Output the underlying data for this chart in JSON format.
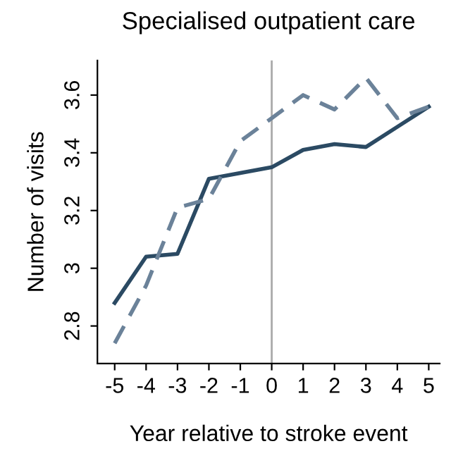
{
  "chart_data": {
    "type": "line",
    "title": "Specialised outpatient care",
    "xlabel": "Year relative to stroke event",
    "ylabel": "Number of visits",
    "x": [
      -5,
      -4,
      -3,
      -2,
      -1,
      0,
      1,
      2,
      3,
      4,
      5
    ],
    "series": [
      {
        "color": "#2b4a63",
        "line_style": "solid",
        "values": [
          2.88,
          3.04,
          3.05,
          3.31,
          3.33,
          3.35,
          3.41,
          3.43,
          3.42,
          3.49,
          3.56
        ]
      },
      {
        "color": "#6b8299",
        "line_style": "dashed",
        "values": [
          2.74,
          2.94,
          3.21,
          3.24,
          3.44,
          3.52,
          3.6,
          3.55,
          3.66,
          3.52,
          3.56
        ]
      }
    ],
    "xlim": [
      -5.55,
      5.35
    ],
    "ylim": [
      2.67,
      3.72
    ],
    "xticks": [
      -5,
      -4,
      -3,
      -2,
      -1,
      0,
      1,
      2,
      3,
      4,
      5
    ],
    "yticks": [
      {
        "value": 2.8,
        "label": "2.8"
      },
      {
        "value": 3.0,
        "label": "3"
      },
      {
        "value": 3.2,
        "label": "3.2"
      },
      {
        "value": 3.4,
        "label": "3.4"
      },
      {
        "value": 3.6,
        "label": "3.6"
      }
    ],
    "ref_lines": [
      {
        "axis": "x",
        "value": 0,
        "color": "#aaaaaa"
      }
    ],
    "grid": false,
    "legend": false,
    "marker": "none"
  }
}
